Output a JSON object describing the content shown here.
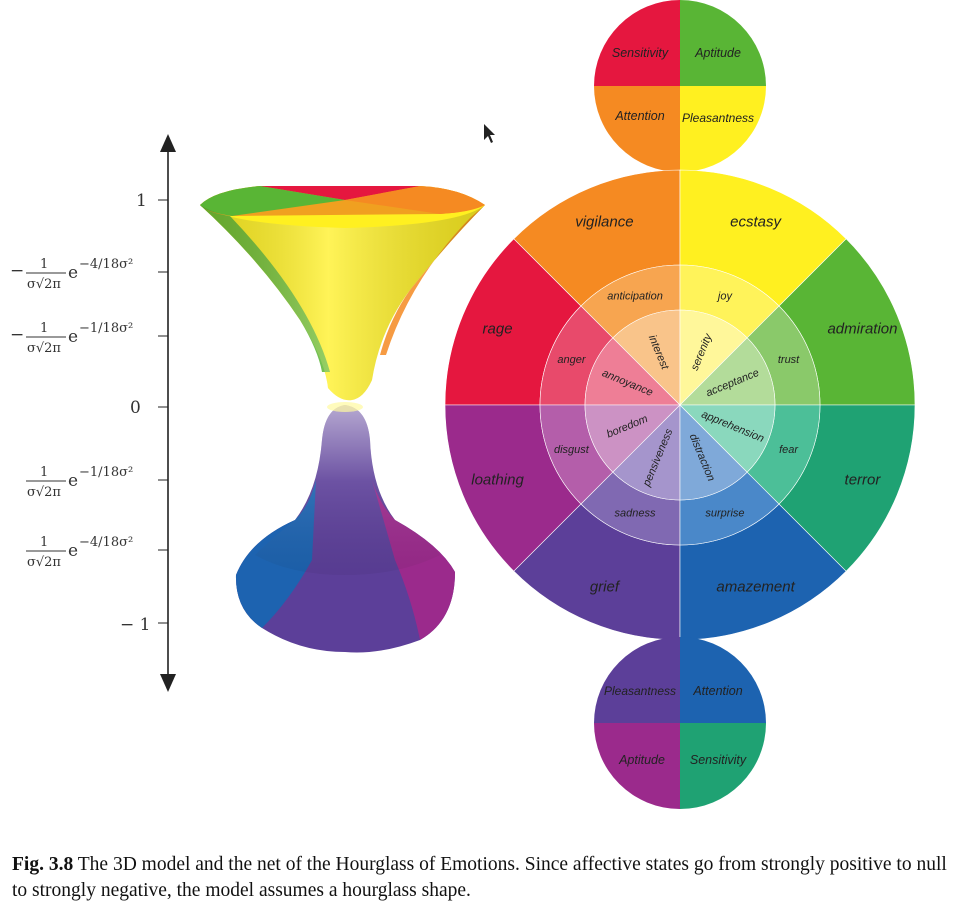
{
  "axis": {
    "ticks": [
      "1",
      "0",
      "− 1"
    ],
    "formula_coeff": "1",
    "formula_den": "σ√2π",
    "formula_base": "e",
    "exp_4": "−4/18σ²",
    "exp_1": "−1/18σ²",
    "minus": "−"
  },
  "hourglass": {
    "top_colors": [
      "#e5173f",
      "#f58a22",
      "#fff020",
      "#59b535"
    ],
    "bottom_colors": [
      "#1d63b0",
      "#5c3f99",
      "#9b2a8c"
    ]
  },
  "net": {
    "top_circle": [
      "Sensitivity",
      "Aptitude",
      "Attention",
      "Pleasantness"
    ],
    "top_outer": [
      "rage",
      "vigilance",
      "ecstasy",
      "admiration"
    ],
    "top_mid": [
      "anger",
      "anticipation",
      "joy",
      "trust"
    ],
    "top_inner": [
      "annoyance",
      "interest",
      "serenity",
      "acceptance"
    ],
    "bottom_outer": [
      "loathing",
      "grief",
      "amazement",
      "terror"
    ],
    "bottom_mid": [
      "disgust",
      "sadness",
      "surprise",
      "fear"
    ],
    "bottom_inner": [
      "boredom",
      "pensiveness",
      "distraction",
      "apprehension"
    ],
    "bottom_circle": [
      "Pleasantness",
      "Attention",
      "Aptitude",
      "Sensitivity"
    ]
  },
  "caption": {
    "label": "Fig. 3.8",
    "text": "The 3D model and the net of the Hourglass of Emotions. Since affective states go from strongly positive to null to strongly negative, the model assumes a hourglass shape."
  }
}
